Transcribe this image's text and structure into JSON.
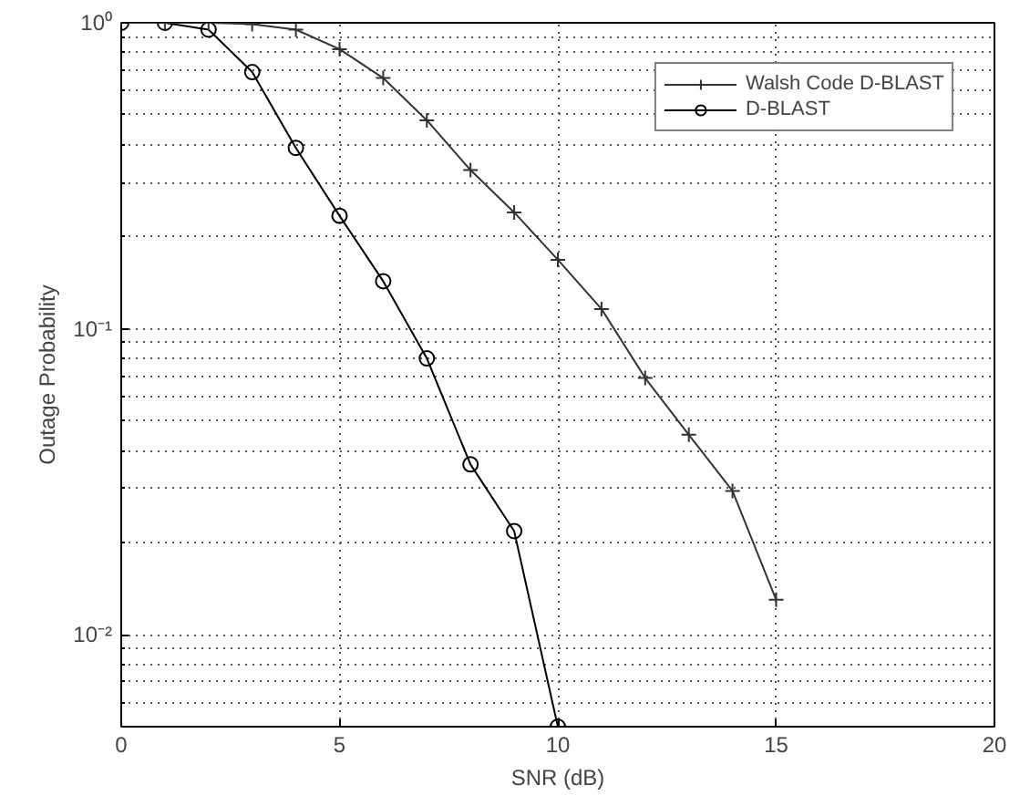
{
  "chart_data": {
    "type": "line",
    "xlabel": "SNR (dB)",
    "ylabel": "Outage Probability",
    "log": "y",
    "grid": true,
    "legend": "top right",
    "line_style": "solid",
    "xlim": [
      0,
      20
    ],
    "xticks": [
      0,
      5,
      10,
      15,
      20
    ],
    "ylim": [
      0.005,
      1
    ],
    "yticks": [
      {
        "value": 1,
        "label": "10⁰"
      },
      {
        "value": 0.1,
        "label": "10⁻¹"
      },
      {
        "value": 0.01,
        "label": "10⁻²"
      }
    ],
    "series": [
      {
        "name": "Walsh Code D-BLAST",
        "color": "#333333",
        "marker": "cross",
        "x": [
          0,
          1,
          2,
          3,
          4,
          5,
          6,
          7,
          8,
          9,
          10,
          11,
          12,
          13,
          14,
          15
        ],
        "values": [
          1,
          1,
          1,
          0.99,
          0.95,
          0.82,
          0.66,
          0.48,
          0.33,
          0.24,
          0.168,
          0.116,
          0.069,
          0.045,
          0.0295,
          0.013
        ]
      },
      {
        "name": "D-BLAST",
        "color": "#000000",
        "marker": "circle",
        "x": [
          0,
          1,
          2,
          3,
          4,
          5,
          6,
          7,
          8,
          9,
          10
        ],
        "values": [
          1,
          1,
          0.95,
          0.69,
          0.39,
          0.234,
          0.143,
          0.08,
          0.036,
          0.0218,
          0.005
        ]
      }
    ]
  }
}
